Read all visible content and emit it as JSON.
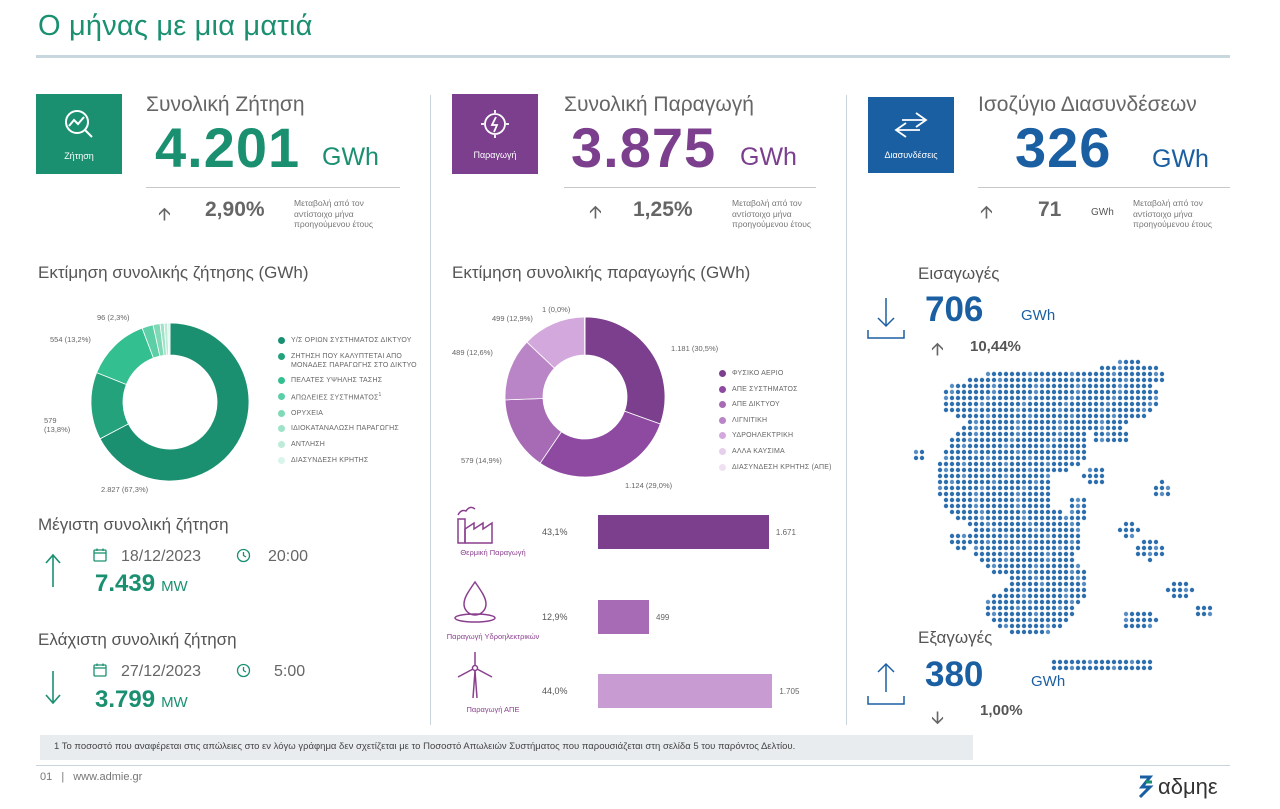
{
  "page": {
    "title": "Ο μήνας με μια ματιά",
    "footnote": "1  Το ποσοστό που αναφέρεται στις απώλειες στο εν λόγω γράφημα δεν  σχετίζεται με το Ποσοστό Απωλειών Συστήματος που παρουσιάζεται στη σελίδα 5 του παρόντος Δελτίου.",
    "page_number": "01",
    "website": "www.admie.gr",
    "logo_text": "αδμηε"
  },
  "colors": {
    "green": "#1a9071",
    "purple": "#7b3f8d",
    "blue": "#1b5fa3"
  },
  "demand": {
    "icon_label": "Ζήτηση",
    "title": "Συνολική Ζήτηση",
    "value": "4.201",
    "unit": "GWh",
    "change": "2,90%",
    "change_note": "Μεταβολή από τον αντίστοιχο μήνα προηγούμενου έτους",
    "estimate_title": "Εκτίμηση συνολικής ζήτησης (GWh)",
    "max_title": "Μέγιστη συνολική ζήτηση",
    "max_date": "18/12/2023",
    "max_time": "20:00",
    "max_value": "7.439",
    "max_unit": "MW",
    "min_title": "Ελάχιστη συνολική ζήτηση",
    "min_date": "27/12/2023",
    "min_time": "5:00",
    "min_value": "3.799",
    "min_unit": "MW"
  },
  "production": {
    "icon_label": "Παραγωγή",
    "title": "Συνολική Παραγωγή",
    "value": "3.875",
    "unit": "GWh",
    "change": "1,25%",
    "change_note": "Μεταβολή από τον αντίστοιχο μήνα προηγούμενου έτους",
    "estimate_title": "Εκτίμηση συνολικής παραγωγής (GWh)"
  },
  "interconnections": {
    "icon_label": "Διασυνδέσεις",
    "title": "Ισοζύγιο Διασυνδέσεων",
    "value": "326",
    "unit": "GWh",
    "change": "71",
    "change_unit": "GWh",
    "change_note": "Μεταβολή από τον αντίστοιχο μήνα προηγούμενου έτους",
    "imports_title": "Εισαγωγές",
    "imports_value": "706",
    "imports_unit": "GWh",
    "imports_change": "10,44%",
    "exports_title": "Εξαγωγές",
    "exports_value": "380",
    "exports_unit": "GWh",
    "exports_change": "1,00%"
  },
  "chart_data": [
    {
      "type": "pie",
      "title": "Εκτίμηση συνολικής ζήτησης (GWh)",
      "categories": [
        "Υ/Σ ΟΡΙΩΝ ΣΥΣΤΗΜΑΤΟΣ ΔΙΚΤΥΟΥ",
        "ΖΗΤΗΣΗ ΠΟΥ ΚΑΛΥΠΤΕΤΑΙ ΑΠΟ ΜΟΝΑΔΕΣ ΠΑΡΑΓΩΓΗΣ ΣΤΟ ΔΙΚΤΥΟ",
        "ΠΕΛΑΤΕΣ ΥΨΗΛΗΣ ΤΑΣΗΣ",
        "ΑΠΩΛΕΙΕΣ ΣΥΣΤΗΜΑΤΟΣ",
        "ΟΡΥΧΕΙΑ",
        "ΙΔΙΟΚΑΤΑΝΑΛΩΣΗ ΠΑΡΑΓΩΓΗΣ",
        "ΑΝΤΛΗΣΗ",
        "ΔΙΑΣΥΝΔΕΣΗ ΚΡΗΤΗΣ"
      ],
      "legend_footnote_mark": "1",
      "values": [
        2827,
        579,
        554,
        96,
        60,
        35,
        30,
        20
      ],
      "colors": [
        "#1a9071",
        "#23a27b",
        "#33bf8f",
        "#5ccfa6",
        "#7fd9b7",
        "#9ee3c8",
        "#bdebd8",
        "#d9f4e9"
      ],
      "labels": [
        "2.827 (67,3%)",
        "579\n(13,8%)",
        "554 (13,2%)",
        "96 (2,3%)"
      ]
    },
    {
      "type": "pie",
      "title": "Εκτίμηση συνολικής παραγωγής (GWh)",
      "categories": [
        "ΦΥΣΙΚΟ ΑΕΡΙΟ",
        "ΑΠΕ ΣΥΣΤΗΜΑΤΟΣ",
        "ΑΠΕ ΔΙΚΤΥΟΥ",
        "ΛΙΓΝΙΤΙΚΗ",
        "ΥΔΡΟΗΛΕΚΤΡΙΚΗ",
        "ΑΛΛΑ ΚΑΥΣΙΜΑ",
        "ΔΙΑΣΥΝΔΕΣΗ ΚΡΗΤΗΣ (ΑΠΕ)"
      ],
      "values": [
        1181,
        1124,
        579,
        489,
        499,
        1,
        2
      ],
      "colors": [
        "#7b3f8d",
        "#8e4aa0",
        "#a76bb6",
        "#b985c6",
        "#d3a9dd",
        "#e6cfea",
        "#efe1f2"
      ],
      "labels": [
        "1.181 (30,5%)",
        "1.124 (29,0%)",
        "579 (14,9%)",
        "489 (12,6%)",
        "499 (12,9%)",
        "1 (0,0%)"
      ]
    },
    {
      "type": "bar",
      "orientation": "horizontal",
      "categories": [
        "Θερμική Παραγωγή",
        "Παραγωγή Υδροηλεκτρικών",
        "Παραγωγή ΑΠΕ"
      ],
      "values": [
        1671,
        499,
        1705
      ],
      "percentages": [
        "43,1%",
        "12,9%",
        "44,0%"
      ],
      "value_labels": [
        "1.671",
        "499",
        "1.705"
      ],
      "colors": [
        "#7b3f8d",
        "#a76bb6",
        "#c89bd3"
      ],
      "xlim": [
        0,
        1900
      ]
    }
  ]
}
